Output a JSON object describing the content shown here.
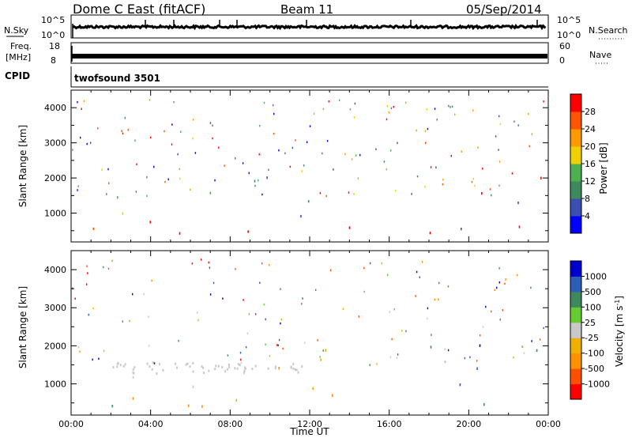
{
  "header": {
    "station": "Dome C East (fitACF)",
    "beam": "Beam 11",
    "date": "05/Sep/2014"
  },
  "noise_panel": {
    "left_label": "N.Sky",
    "left_ticks": [
      "10^5",
      "10^0"
    ],
    "right_ticks": [
      "10^5",
      "10^0"
    ],
    "right_label": "N.Search"
  },
  "freq_panel": {
    "left_label_1": "Freq.",
    "left_label_2": "[MHz]",
    "left_ticks": [
      "18",
      "8"
    ],
    "right_ticks": [
      "60",
      "0"
    ],
    "right_label": "Nave"
  },
  "cpid": {
    "label": "CPID",
    "value": "twofsound 3501"
  },
  "colors": {
    "power_scale": [
      "#0000ff",
      "#3a4fb0",
      "#3f8a5c",
      "#4caf50",
      "#f0d000",
      "#ff9900",
      "#ff5500",
      "#ff0000"
    ],
    "velocity_scale": [
      "#0000cc",
      "#2a5fb5",
      "#3f8a5c",
      "#66cc33",
      "#c8c8c8",
      "#f0b000",
      "#ff9000",
      "#ff5000",
      "#ff0000"
    ]
  },
  "chart_data": [
    {
      "type": "heatmap",
      "title": "Power",
      "xlabel": "",
      "ylabel": "Slant Range [km]",
      "x_ticks": [
        "00:00",
        "04:00",
        "08:00",
        "12:00",
        "16:00",
        "20:00",
        "00:00"
      ],
      "x_range_hours": [
        0,
        24
      ],
      "y_ticks": [
        1000,
        2000,
        3000,
        4000
      ],
      "y_range_km": [
        180,
        4500
      ],
      "colorbar": {
        "label": "Power [dB]",
        "ticks": [
          4,
          8,
          12,
          16,
          20,
          24,
          28
        ],
        "range": [
          0,
          32
        ]
      }
    },
    {
      "type": "heatmap",
      "title": "Velocity",
      "xlabel": "Time UT",
      "ylabel": "Slant Range [km]",
      "x_ticks": [
        "00:00",
        "04:00",
        "08:00",
        "12:00",
        "16:00",
        "20:00",
        "00:00"
      ],
      "x_range_hours": [
        0,
        24
      ],
      "y_ticks": [
        1000,
        2000,
        3000,
        4000
      ],
      "y_range_km": [
        180,
        4500
      ],
      "colorbar": {
        "label": "Velocity [m s^-1]",
        "ticks": [
          1000,
          500,
          100,
          25,
          -25,
          -100,
          -500,
          -1000
        ]
      }
    }
  ]
}
